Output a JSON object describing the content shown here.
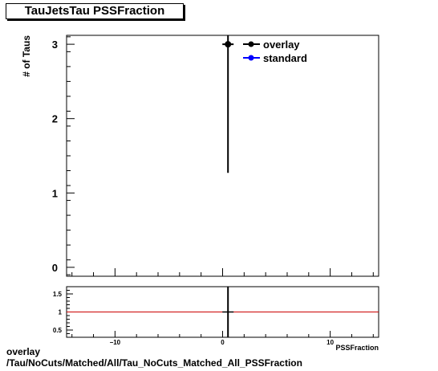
{
  "title": "TauJetsTau PSSFraction",
  "footer": {
    "line1": "overlay",
    "line2": "/Tau/NoCuts/Matched/All/Tau_NoCuts_Matched_All_PSSFraction"
  },
  "chart_data": [
    {
      "type": "scatter",
      "ylabel": "# of Taus",
      "xlim": [
        -14.5,
        14.5
      ],
      "ylim": [
        -0.12,
        3.12
      ],
      "y_ticks": [
        0,
        1,
        2,
        3
      ],
      "x_ticks": [],
      "legend_position": "top-right",
      "series": [
        {
          "name": "overlay",
          "color": "#000000",
          "points": [
            {
              "x": 0.5,
              "y": 3,
              "y_low": 1.27,
              "y_high": 3.12
            }
          ]
        },
        {
          "name": "standard",
          "color": "#0000ff",
          "points": []
        }
      ]
    },
    {
      "type": "line",
      "xlabel": "PSSFraction",
      "xlim": [
        -14.5,
        14.5
      ],
      "ylim": [
        0.3,
        1.7
      ],
      "x_ticks": [
        -10,
        0,
        10
      ],
      "y_ticks": [
        0.5,
        1,
        1.5
      ],
      "y_tick_labels": [
        "0.5",
        "1",
        "1.5"
      ],
      "reference_line": {
        "y": 1,
        "color": "#cc0000"
      },
      "series": [
        {
          "name": "ratio",
          "color": "#000000",
          "points": [
            {
              "x": 0.5,
              "y": 1.0,
              "y_low": 0.3,
              "y_high": 1.7
            }
          ]
        }
      ]
    }
  ]
}
